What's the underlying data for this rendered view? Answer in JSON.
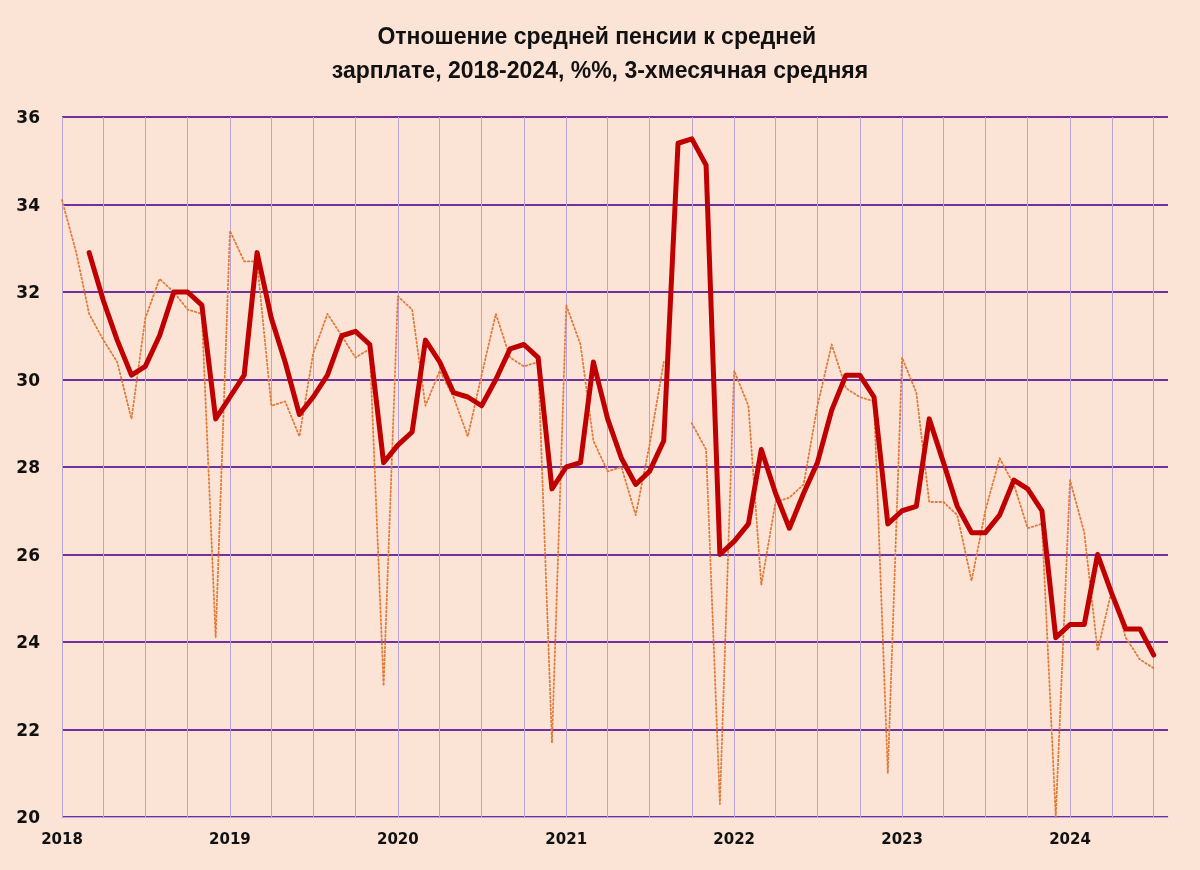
{
  "chart_data": {
    "type": "line",
    "title": "Отношение средней пенсии к средней зарплате, 2018-2024, %%, 3-хмесячная средняя",
    "x": [
      "2018-01",
      "2018-02",
      "2018-03",
      "2018-04",
      "2018-05",
      "2018-06",
      "2018-07",
      "2018-08",
      "2018-09",
      "2018-10",
      "2018-11",
      "2018-12",
      "2019-01",
      "2019-02",
      "2019-03",
      "2019-04",
      "2019-05",
      "2019-06",
      "2019-07",
      "2019-08",
      "2019-09",
      "2019-10",
      "2019-11",
      "2019-12",
      "2020-01",
      "2020-02",
      "2020-03",
      "2020-04",
      "2020-05",
      "2020-06",
      "2020-07",
      "2020-08",
      "2020-09",
      "2020-10",
      "2020-11",
      "2020-12",
      "2021-01",
      "2021-02",
      "2021-03",
      "2021-04",
      "2021-05",
      "2021-06",
      "2021-07",
      "2021-08",
      "2021-09",
      "2021-10",
      "2021-11",
      "2021-12",
      "2022-01",
      "2022-02",
      "2022-03",
      "2022-04",
      "2022-05",
      "2022-06",
      "2022-07",
      "2022-08",
      "2022-09",
      "2022-10",
      "2022-11",
      "2022-12",
      "2023-01",
      "2023-02",
      "2023-03",
      "2023-04",
      "2023-05",
      "2023-06",
      "2023-07",
      "2023-08",
      "2023-09",
      "2023-10",
      "2023-11",
      "2023-12",
      "2024-01",
      "2024-02",
      "2024-03",
      "2024-04",
      "2024-05",
      "2024-06",
      "2024-07"
    ],
    "series": [
      {
        "color": "#e07b39",
        "line_style": "dotted",
        "values": [
          34.1,
          32.9,
          31.5,
          30.9,
          30.4,
          29.1,
          31.4,
          32.3,
          32.0,
          31.6,
          31.5,
          24.1,
          33.4,
          32.7,
          32.7,
          29.4,
          29.5,
          28.7,
          30.6,
          31.5,
          31.0,
          30.5,
          30.7,
          23.0,
          31.9,
          31.6,
          29.4,
          30.2,
          29.6,
          28.7,
          30.1,
          31.5,
          30.5,
          30.3,
          30.4,
          21.7,
          31.7,
          30.8,
          28.6,
          27.9,
          28.0,
          26.9,
          28.5,
          30.4,
          null,
          29.0,
          28.4,
          20.3,
          30.2,
          29.4,
          25.3,
          27.2,
          27.3,
          27.6,
          29.4,
          30.8,
          29.8,
          29.6,
          29.5,
          21.0,
          30.5,
          29.7,
          27.2,
          27.2,
          26.9,
          25.4,
          27.0,
          28.2,
          27.6,
          26.6,
          26.7,
          20.0,
          27.7,
          26.5,
          23.8,
          25.2,
          24.1,
          23.6,
          23.4
        ]
      },
      {
        "color": "#c00000",
        "line_style": "solid",
        "values": [
          null,
          null,
          32.9,
          31.8,
          30.9,
          30.1,
          30.3,
          31.0,
          32.0,
          32.0,
          31.7,
          29.1,
          29.6,
          30.1,
          32.9,
          31.4,
          30.4,
          29.2,
          29.6,
          30.1,
          31.0,
          31.1,
          30.8,
          28.1,
          28.5,
          28.8,
          30.9,
          30.4,
          29.7,
          29.6,
          29.4,
          30.0,
          30.7,
          30.8,
          30.5,
          27.5,
          28.0,
          28.1,
          30.4,
          29.1,
          28.2,
          27.6,
          27.9,
          28.6,
          35.4,
          35.5,
          34.9,
          26.0,
          26.3,
          26.7,
          28.4,
          27.4,
          26.6,
          27.4,
          28.1,
          29.3,
          30.1,
          30.1,
          29.6,
          26.7,
          27.0,
          27.1,
          29.1,
          28.1,
          27.1,
          26.5,
          26.5,
          26.9,
          27.7,
          27.5,
          27.0,
          24.1,
          24.4,
          24.4,
          26.0,
          25.1,
          24.3,
          24.3,
          23.7
        ]
      }
    ],
    "xlim": [
      "2018-01",
      "2024-08"
    ],
    "xticks": [
      {
        "value": "2018-01",
        "label": "2018"
      },
      {
        "value": "2018-04",
        "label": null
      },
      {
        "value": "2018-07",
        "label": null
      },
      {
        "value": "2018-10",
        "label": null
      },
      {
        "value": "2019-01",
        "label": "2019"
      },
      {
        "value": "2019-04",
        "label": null
      },
      {
        "value": "2019-07",
        "label": null
      },
      {
        "value": "2019-10",
        "label": null
      },
      {
        "value": "2020-01",
        "label": "2020"
      },
      {
        "value": "2020-04",
        "label": null
      },
      {
        "value": "2020-07",
        "label": null
      },
      {
        "value": "2020-10",
        "label": null
      },
      {
        "value": "2021-01",
        "label": "2021"
      },
      {
        "value": "2021-04",
        "label": null
      },
      {
        "value": "2021-07",
        "label": null
      },
      {
        "value": "2021-10",
        "label": null
      },
      {
        "value": "2022-01",
        "label": "2022"
      },
      {
        "value": "2022-04",
        "label": null
      },
      {
        "value": "2022-07",
        "label": null
      },
      {
        "value": "2022-10",
        "label": null
      },
      {
        "value": "2023-01",
        "label": "2023"
      },
      {
        "value": "2023-04",
        "label": null
      },
      {
        "value": "2023-07",
        "label": null
      },
      {
        "value": "2023-10",
        "label": null
      },
      {
        "value": "2024-01",
        "label": "2024"
      },
      {
        "value": "2024-04",
        "label": null
      },
      {
        "value": "2024-07",
        "label": null
      }
    ],
    "ylim": [
      20,
      36
    ],
    "yticks": [
      20,
      22,
      24,
      26,
      28,
      30,
      32,
      34,
      36
    ],
    "grid": true,
    "marker": "none"
  }
}
